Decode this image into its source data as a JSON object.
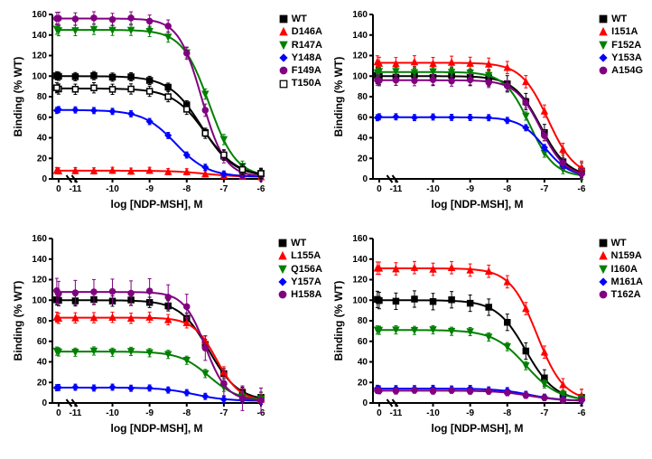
{
  "figure": {
    "background": "#ffffff",
    "cols": 2,
    "rows": 2,
    "x_label": "log [NDP-MSH], M",
    "y_label": "Binding (% WT)",
    "label_fontsize": 12,
    "label_fontweight": "bold",
    "tick_fontsize": 10,
    "tick_fontweight": "bold",
    "x_ticks": [
      0,
      -11,
      -10,
      -9,
      -8,
      -7,
      -6
    ],
    "x_tick_labels": [
      "0",
      "-11",
      "-10",
      "-9",
      "-8",
      "-7",
      "-6"
    ],
    "y_lim": [
      0,
      160
    ],
    "y_ticks": [
      0,
      20,
      40,
      60,
      80,
      100,
      120,
      140,
      160
    ],
    "axis_linewidth": 2,
    "line_width": 2,
    "marker_size": 6,
    "break_mark_x": 0.08
  },
  "colors": {
    "WT": "#000000",
    "red": "#ff0000",
    "green": "#008000",
    "blue": "#0000ff",
    "purple": "#800080",
    "black": "#000000"
  },
  "x_data": [
    -12,
    -11.5,
    -11,
    -10.5,
    -10,
    -9.5,
    -9,
    -8.5,
    -8,
    -7.5,
    -7,
    -6.5,
    -6
  ],
  "panels": [
    {
      "id": "p1",
      "legend": [
        "WT",
        "D146A",
        "R147A",
        "Y148A",
        "F149A",
        "T150A"
      ],
      "series": [
        {
          "name": "WT",
          "color": "#000000",
          "marker": "square",
          "fill": true,
          "top": 100,
          "bottom": 2,
          "logIC50": -7.6,
          "hill": 1.0,
          "err": 4
        },
        {
          "name": "D146A",
          "color": "#ff0000",
          "marker": "triangle",
          "fill": true,
          "top": 8,
          "bottom": 2,
          "logIC50": -7.5,
          "hill": 1.0,
          "err": 3
        },
        {
          "name": "R147A",
          "color": "#008000",
          "marker": "tridown",
          "fill": true,
          "top": 145,
          "bottom": 2,
          "logIC50": -7.4,
          "hill": 1.2,
          "err": 5
        },
        {
          "name": "Y148A",
          "color": "#0000ff",
          "marker": "diamond",
          "fill": true,
          "top": 67,
          "bottom": 2,
          "logIC50": -8.3,
          "hill": 1.0,
          "err": 3
        },
        {
          "name": "F149A",
          "color": "#800080",
          "marker": "circle",
          "fill": true,
          "top": 156,
          "bottom": 2,
          "logIC50": -7.6,
          "hill": 1.4,
          "err": 6
        },
        {
          "name": "T150A",
          "color": "#000000",
          "marker": "square",
          "fill": false,
          "top": 88,
          "bottom": 2,
          "logIC50": -7.5,
          "hill": 1.0,
          "err": 5
        }
      ]
    },
    {
      "id": "p2",
      "legend": [
        "WT",
        "I151A",
        "F152A",
        "Y153A",
        "A154G"
      ],
      "series": [
        {
          "name": "WT",
          "color": "#000000",
          "marker": "square",
          "fill": true,
          "top": 100,
          "bottom": 2,
          "logIC50": -7.1,
          "hill": 1.2,
          "err": 8
        },
        {
          "name": "I151A",
          "color": "#ff0000",
          "marker": "triangle",
          "fill": true,
          "top": 113,
          "bottom": 2,
          "logIC50": -6.9,
          "hill": 1.2,
          "err": 6
        },
        {
          "name": "F152A",
          "color": "#008000",
          "marker": "tridown",
          "fill": true,
          "top": 104,
          "bottom": 2,
          "logIC50": -7.4,
          "hill": 1.3,
          "err": 4
        },
        {
          "name": "Y153A",
          "color": "#0000ff",
          "marker": "diamond",
          "fill": true,
          "top": 60,
          "bottom": 2,
          "logIC50": -7.0,
          "hill": 1.3,
          "err": 3
        },
        {
          "name": "A154G",
          "color": "#800080",
          "marker": "circle",
          "fill": true,
          "top": 96,
          "bottom": 2,
          "logIC50": -7.1,
          "hill": 1.3,
          "err": 5
        }
      ]
    },
    {
      "id": "p3",
      "legend": [
        "WT",
        "L155A",
        "Q156A",
        "Y157A",
        "H158A"
      ],
      "series": [
        {
          "name": "WT",
          "color": "#000000",
          "marker": "square",
          "fill": true,
          "top": 100,
          "bottom": 2,
          "logIC50": -7.4,
          "hill": 1.1,
          "err": 5
        },
        {
          "name": "L155A",
          "color": "#ff0000",
          "marker": "triangle",
          "fill": true,
          "top": 83,
          "bottom": 2,
          "logIC50": -7.2,
          "hill": 1.4,
          "err": 5
        },
        {
          "name": "Q156A",
          "color": "#008000",
          "marker": "tridown",
          "fill": true,
          "top": 50,
          "bottom": 2,
          "logIC50": -7.4,
          "hill": 1.1,
          "err": 4
        },
        {
          "name": "Y157A",
          "color": "#0000ff",
          "marker": "diamond",
          "fill": true,
          "top": 15,
          "bottom": 2,
          "logIC50": -7.8,
          "hill": 1.0,
          "err": 3
        },
        {
          "name": "H158A",
          "color": "#800080",
          "marker": "circle",
          "fill": true,
          "top": 108,
          "bottom": 2,
          "logIC50": -7.5,
          "hill": 1.5,
          "err": 12
        }
      ]
    },
    {
      "id": "p4",
      "legend": [
        "WT",
        "N159A",
        "I160A",
        "M161A",
        "T162A"
      ],
      "series": [
        {
          "name": "WT",
          "color": "#000000",
          "marker": "square",
          "fill": true,
          "top": 100,
          "bottom": 2,
          "logIC50": -7.5,
          "hill": 1.1,
          "err": 8
        },
        {
          "name": "N159A",
          "color": "#ff0000",
          "marker": "triangle",
          "fill": true,
          "top": 131,
          "bottom": 2,
          "logIC50": -7.2,
          "hill": 1.2,
          "err": 6
        },
        {
          "name": "I160A",
          "color": "#008000",
          "marker": "tridown",
          "fill": true,
          "top": 71,
          "bottom": 2,
          "logIC50": -7.5,
          "hill": 1.0,
          "err": 4
        },
        {
          "name": "M161A",
          "color": "#0000ff",
          "marker": "diamond",
          "fill": true,
          "top": 14,
          "bottom": 2,
          "logIC50": -7.4,
          "hill": 1.0,
          "err": 3
        },
        {
          "name": "T162A",
          "color": "#800080",
          "marker": "circle",
          "fill": true,
          "top": 12,
          "bottom": 2,
          "logIC50": -7.4,
          "hill": 1.0,
          "err": 3
        }
      ]
    }
  ]
}
